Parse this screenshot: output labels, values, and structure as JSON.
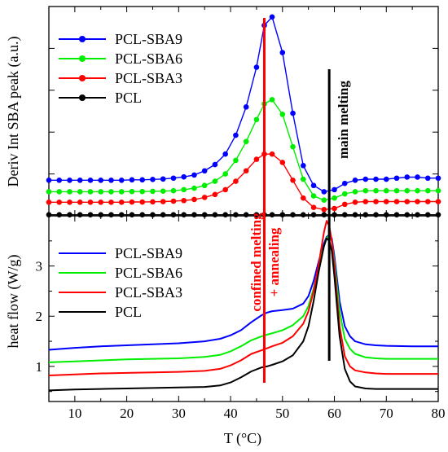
{
  "chart_data": [
    {
      "panel": "top",
      "type": "line",
      "ylabel": "Deriv Int SBA peak (a.u.)",
      "xlim": [
        5,
        80
      ],
      "ylim": [
        0,
        10
      ],
      "y_ticks_shown": false,
      "marker": "circle",
      "legend_position": "top-left",
      "series": [
        {
          "name": "PCL-SBA9",
          "color": "#0000ff",
          "x": [
            5,
            7,
            9,
            11,
            13,
            15,
            17,
            19,
            21,
            23,
            25,
            27,
            29,
            31,
            33,
            35,
            37,
            39,
            41,
            43,
            45,
            46.5,
            48,
            50,
            52,
            54,
            56,
            58,
            60,
            62,
            64,
            66,
            68,
            70,
            72,
            74,
            76,
            78,
            80
          ],
          "y": [
            1.7,
            1.7,
            1.7,
            1.7,
            1.7,
            1.7,
            1.7,
            1.7,
            1.72,
            1.72,
            1.74,
            1.76,
            1.8,
            1.86,
            1.95,
            2.15,
            2.45,
            2.95,
            3.85,
            5.2,
            7.1,
            9.1,
            9.5,
            7.8,
            4.9,
            2.4,
            1.45,
            1.15,
            1.25,
            1.55,
            1.7,
            1.75,
            1.75,
            1.75,
            1.8,
            1.85,
            1.85,
            1.8,
            1.8
          ]
        },
        {
          "name": "PCL-SBA6",
          "color": "#00ee00",
          "x": [
            5,
            7,
            9,
            11,
            13,
            15,
            17,
            19,
            21,
            23,
            25,
            27,
            29,
            31,
            33,
            35,
            37,
            39,
            41,
            43,
            45,
            46.5,
            48,
            50,
            52,
            54,
            56,
            58,
            60,
            62,
            64,
            66,
            68,
            70,
            72,
            74,
            76,
            78,
            80
          ],
          "y": [
            1.15,
            1.15,
            1.15,
            1.15,
            1.15,
            1.15,
            1.15,
            1.15,
            1.16,
            1.16,
            1.17,
            1.18,
            1.2,
            1.25,
            1.32,
            1.45,
            1.65,
            2.0,
            2.65,
            3.55,
            4.6,
            5.35,
            5.55,
            4.85,
            3.3,
            1.75,
            0.95,
            0.75,
            0.85,
            1.05,
            1.15,
            1.2,
            1.2,
            1.2,
            1.2,
            1.2,
            1.2,
            1.2,
            1.2
          ]
        },
        {
          "name": "PCL-SBA3",
          "color": "#ff0000",
          "x": [
            5,
            7,
            9,
            11,
            13,
            15,
            17,
            19,
            21,
            23,
            25,
            27,
            29,
            31,
            33,
            35,
            37,
            39,
            41,
            43,
            45,
            46.5,
            48,
            50,
            52,
            54,
            56,
            58,
            60,
            62,
            64,
            66,
            68,
            70,
            72,
            74,
            76,
            78,
            80
          ],
          "y": [
            0.65,
            0.65,
            0.65,
            0.65,
            0.65,
            0.65,
            0.65,
            0.65,
            0.66,
            0.66,
            0.67,
            0.68,
            0.7,
            0.73,
            0.78,
            0.88,
            1.02,
            1.25,
            1.65,
            2.15,
            2.7,
            2.95,
            2.95,
            2.55,
            1.7,
            0.85,
            0.4,
            0.3,
            0.35,
            0.55,
            0.65,
            0.68,
            0.68,
            0.68,
            0.68,
            0.68,
            0.68,
            0.68,
            0.68
          ]
        },
        {
          "name": "PCL",
          "color": "#000000",
          "x": [
            5,
            7,
            9,
            11,
            13,
            15,
            17,
            19,
            21,
            23,
            25,
            27,
            29,
            31,
            33,
            35,
            37,
            39,
            41,
            43,
            45,
            46.5,
            48,
            50,
            52,
            54,
            56,
            58,
            60,
            62,
            64,
            66,
            68,
            70,
            72,
            74,
            76,
            78,
            80
          ],
          "y": [
            0.05,
            0.05,
            0.05,
            0.05,
            0.05,
            0.05,
            0.05,
            0.05,
            0.05,
            0.05,
            0.05,
            0.05,
            0.05,
            0.05,
            0.05,
            0.05,
            0.05,
            0.05,
            0.05,
            0.05,
            0.05,
            0.05,
            0.05,
            0.05,
            0.05,
            0.05,
            0.05,
            0.05,
            0.05,
            0.05,
            0.05,
            0.05,
            0.05,
            0.05,
            0.05,
            0.05,
            0.05,
            0.05,
            0.05
          ]
        }
      ],
      "annotations": [
        {
          "text": "main melting",
          "color": "#000000"
        }
      ]
    },
    {
      "panel": "bottom",
      "type": "line",
      "xlabel": "T (°C)",
      "ylabel": "heat flow (W/g)",
      "xlim": [
        5,
        80
      ],
      "ylim": [
        0.3,
        4.0
      ],
      "x_ticks": [
        10,
        20,
        30,
        40,
        50,
        60,
        70,
        80
      ],
      "y_ticks": [
        1,
        2,
        3
      ],
      "legend_position": "top-left",
      "series": [
        {
          "name": "PCL-SBA9",
          "color": "#0000ff",
          "x": [
            5,
            10,
            15,
            20,
            25,
            30,
            35,
            38,
            40,
            42,
            44,
            46,
            47,
            48,
            50,
            52,
            54,
            55,
            56,
            57,
            58,
            58.5,
            59,
            59.5,
            60,
            61,
            62,
            63,
            64,
            66,
            68,
            70,
            75,
            80
          ],
          "y": [
            1.33,
            1.37,
            1.4,
            1.42,
            1.44,
            1.46,
            1.5,
            1.55,
            1.62,
            1.72,
            1.88,
            2.02,
            2.07,
            2.1,
            2.12,
            2.15,
            2.25,
            2.4,
            2.7,
            3.1,
            3.45,
            3.58,
            3.62,
            3.55,
            3.2,
            2.3,
            1.8,
            1.6,
            1.5,
            1.44,
            1.42,
            1.41,
            1.4,
            1.4
          ]
        },
        {
          "name": "PCL-SBA6",
          "color": "#00ee00",
          "x": [
            5,
            10,
            15,
            20,
            25,
            30,
            35,
            38,
            40,
            42,
            44,
            46,
            47,
            48,
            50,
            52,
            54,
            55,
            56,
            57,
            58,
            58.5,
            59,
            59.5,
            60,
            61,
            62,
            63,
            64,
            66,
            68,
            70,
            75,
            80
          ],
          "y": [
            1.08,
            1.1,
            1.12,
            1.14,
            1.15,
            1.16,
            1.19,
            1.23,
            1.3,
            1.4,
            1.52,
            1.6,
            1.63,
            1.66,
            1.72,
            1.82,
            2.0,
            2.2,
            2.55,
            3.0,
            3.4,
            3.56,
            3.6,
            3.5,
            3.1,
            2.1,
            1.55,
            1.35,
            1.25,
            1.18,
            1.16,
            1.15,
            1.15,
            1.15
          ]
        },
        {
          "name": "PCL-SBA3",
          "color": "#ff0000",
          "x": [
            5,
            10,
            15,
            20,
            25,
            30,
            35,
            38,
            40,
            42,
            44,
            46,
            47,
            48,
            50,
            52,
            54,
            55,
            56,
            57,
            58,
            58.5,
            59,
            59.5,
            60,
            61,
            62,
            63,
            64,
            66,
            68,
            70,
            75,
            80
          ],
          "y": [
            0.82,
            0.84,
            0.86,
            0.87,
            0.88,
            0.89,
            0.91,
            0.95,
            1.02,
            1.12,
            1.25,
            1.32,
            1.36,
            1.4,
            1.47,
            1.6,
            1.85,
            2.1,
            2.5,
            3.05,
            3.68,
            3.9,
            3.8,
            3.5,
            3.0,
            1.8,
            1.2,
            1.0,
            0.92,
            0.88,
            0.86,
            0.85,
            0.85,
            0.85
          ]
        },
        {
          "name": "PCL",
          "color": "#000000",
          "x": [
            5,
            10,
            15,
            20,
            25,
            30,
            35,
            38,
            40,
            42,
            44,
            46,
            47,
            48,
            50,
            52,
            54,
            55,
            56,
            57,
            58,
            58.5,
            59,
            59.5,
            60,
            61,
            62,
            63,
            64,
            66,
            68,
            70,
            75,
            80
          ],
          "y": [
            0.52,
            0.54,
            0.55,
            0.56,
            0.57,
            0.58,
            0.59,
            0.62,
            0.68,
            0.78,
            0.9,
            0.98,
            1.0,
            1.03,
            1.1,
            1.22,
            1.5,
            1.8,
            2.3,
            2.9,
            3.4,
            3.55,
            3.5,
            3.3,
            2.8,
            1.6,
            0.95,
            0.7,
            0.6,
            0.56,
            0.55,
            0.55,
            0.55,
            0.55
          ]
        }
      ],
      "annotations": [
        {
          "text": "confined melting",
          "color": "#ff0000"
        },
        {
          "text": "+ annealing",
          "color": "#ff0000"
        }
      ]
    }
  ],
  "vertical_lines": [
    {
      "x": 46.5,
      "color": "#ff0000"
    },
    {
      "x": 59,
      "color": "#000000"
    }
  ]
}
